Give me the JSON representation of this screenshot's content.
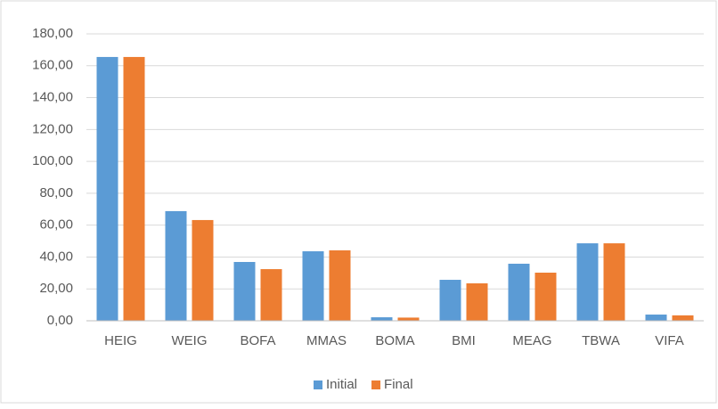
{
  "chart_data": {
    "type": "bar",
    "categories": [
      "HEIG",
      "WEIG",
      "BOFA",
      "MMAS",
      "BOMA",
      "BMI",
      "MEAG",
      "TBWA",
      "VIFA"
    ],
    "series": [
      {
        "name": "Initial",
        "color": "#5b9bd5",
        "values": [
          165.5,
          68.8,
          36.9,
          43.6,
          2.2,
          25.7,
          35.8,
          48.6,
          3.9
        ]
      },
      {
        "name": "Final",
        "color": "#ed7d31",
        "values": [
          165.5,
          63.2,
          32.4,
          44.2,
          2.0,
          23.5,
          30.2,
          48.6,
          3.4
        ]
      }
    ],
    "ylim": [
      0,
      180
    ],
    "yticks": [
      {
        "value": 0,
        "label": "0,00"
      },
      {
        "value": 20,
        "label": "20,00"
      },
      {
        "value": 40,
        "label": "40,00"
      },
      {
        "value": 60,
        "label": "60,00"
      },
      {
        "value": 80,
        "label": "80,00"
      },
      {
        "value": 100,
        "label": "100,00"
      },
      {
        "value": 120,
        "label": "120,00"
      },
      {
        "value": 140,
        "label": "140,00"
      },
      {
        "value": 160,
        "label": "160,00"
      },
      {
        "value": 180,
        "label": "180,00"
      }
    ],
    "grid": true,
    "legend": "bottom"
  }
}
